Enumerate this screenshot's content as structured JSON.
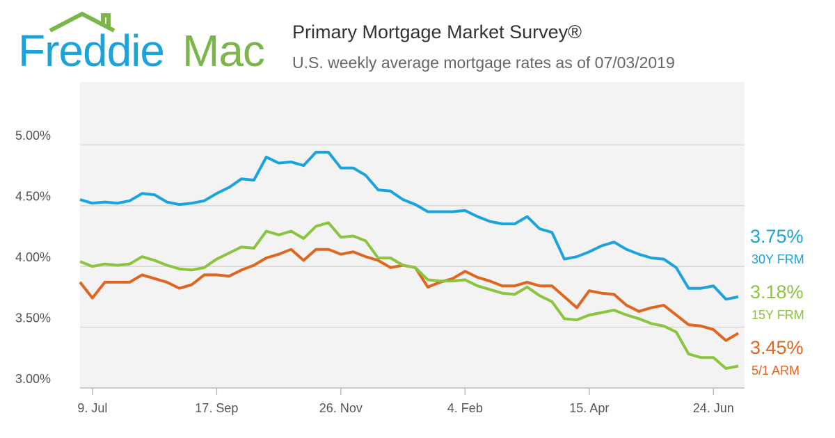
{
  "logo": {
    "left": "Freddie",
    "right": "Mac"
  },
  "chart_data": {
    "type": "line",
    "title": "Primary Mortgage Market Survey®",
    "subtitle": "U.S. weekly average mortgage rates as of 07/03/2019",
    "categories": [
      null,
      "9. Jul",
      null,
      null,
      null,
      null,
      null,
      null,
      null,
      null,
      null,
      "17. Sep",
      null,
      null,
      null,
      null,
      null,
      null,
      null,
      null,
      null,
      "26. Nov",
      null,
      null,
      null,
      null,
      null,
      null,
      null,
      null,
      null,
      "4. Feb",
      null,
      null,
      null,
      null,
      null,
      null,
      null,
      null,
      null,
      "15. Apr",
      null,
      null,
      null,
      null,
      null,
      null,
      null,
      null,
      null,
      "24. Jun",
      null,
      null
    ],
    "ylim": [
      3,
      5.5
    ],
    "yticks": [
      {
        "value": 3,
        "label": "3.00%"
      },
      {
        "value": 3.5,
        "label": "3.50%"
      },
      {
        "value": 4,
        "label": "4.00%"
      },
      {
        "value": 4.5,
        "label": "4.50%"
      },
      {
        "value": 5,
        "label": "5.00%"
      }
    ],
    "grid": true,
    "series": [
      {
        "name": "30Y FRM",
        "color": "#1ba3de",
        "values": [
          4.55,
          4.52,
          4.53,
          4.52,
          4.54,
          4.6,
          4.59,
          4.53,
          4.51,
          4.52,
          4.54,
          4.6,
          4.65,
          4.72,
          4.71,
          4.9,
          4.85,
          4.86,
          4.83,
          4.94,
          4.94,
          4.81,
          4.81,
          4.75,
          4.63,
          4.62,
          4.55,
          4.51,
          4.45,
          4.45,
          4.45,
          4.46,
          4.41,
          4.37,
          4.35,
          4.35,
          4.41,
          4.31,
          4.28,
          4.06,
          4.08,
          4.12,
          4.17,
          4.2,
          4.14,
          4.1,
          4.07,
          4.06,
          3.99,
          3.82,
          3.82,
          3.84,
          3.73,
          3.75
        ],
        "value_labels": [
          null,
          null,
          null,
          null,
          null,
          null,
          null,
          null,
          null,
          null,
          null,
          null,
          null,
          null,
          null,
          null,
          null,
          null,
          null,
          null,
          null,
          null,
          null,
          null,
          null,
          null,
          null,
          null,
          null,
          null,
          null,
          null,
          null,
          null,
          null,
          null,
          null,
          null,
          null,
          null,
          null,
          null,
          null,
          null,
          null,
          null,
          null,
          null,
          null,
          null,
          null,
          null,
          null,
          "3.75%"
        ]
      },
      {
        "name": "15Y FRM",
        "color": "#8bc43f",
        "values": [
          4.04,
          4.0,
          4.02,
          4.01,
          4.02,
          4.08,
          4.05,
          4.01,
          3.98,
          3.97,
          3.99,
          4.06,
          4.11,
          4.16,
          4.15,
          4.29,
          4.26,
          4.29,
          4.23,
          4.33,
          4.36,
          4.24,
          4.25,
          4.21,
          4.07,
          4.07,
          4.01,
          3.99,
          3.89,
          3.88,
          3.88,
          3.89,
          3.84,
          3.81,
          3.78,
          3.77,
          3.83,
          3.76,
          3.71,
          3.57,
          3.56,
          3.6,
          3.62,
          3.64,
          3.6,
          3.57,
          3.53,
          3.51,
          3.46,
          3.28,
          3.25,
          3.25,
          3.16,
          3.18
        ],
        "value_labels": [
          null,
          null,
          null,
          null,
          null,
          null,
          null,
          null,
          null,
          null,
          null,
          null,
          null,
          null,
          null,
          null,
          null,
          null,
          null,
          null,
          null,
          null,
          null,
          null,
          null,
          null,
          null,
          null,
          null,
          null,
          null,
          null,
          null,
          null,
          null,
          null,
          null,
          null,
          null,
          null,
          null,
          null,
          null,
          null,
          null,
          null,
          null,
          null,
          null,
          null,
          null,
          null,
          null,
          "3.18%"
        ]
      },
      {
        "name": "5/1 ARM",
        "color": "#e0651e",
        "values": [
          3.87,
          3.74,
          3.87,
          3.87,
          3.87,
          3.93,
          3.9,
          3.87,
          3.82,
          3.85,
          3.93,
          3.93,
          3.92,
          3.97,
          4.01,
          4.07,
          4.1,
          4.14,
          4.05,
          4.14,
          4.14,
          4.1,
          4.12,
          4.08,
          4.05,
          3.99,
          4.01,
          3.99,
          3.83,
          3.87,
          3.9,
          3.96,
          3.91,
          3.88,
          3.84,
          3.84,
          3.87,
          3.84,
          3.84,
          3.75,
          3.66,
          3.8,
          3.78,
          3.77,
          3.68,
          3.63,
          3.66,
          3.68,
          3.6,
          3.52,
          3.51,
          3.48,
          3.39,
          3.45
        ],
        "value_labels": [
          null,
          null,
          null,
          null,
          null,
          null,
          null,
          null,
          null,
          null,
          null,
          null,
          null,
          null,
          null,
          null,
          null,
          null,
          null,
          null,
          null,
          null,
          null,
          null,
          null,
          null,
          null,
          null,
          null,
          null,
          null,
          null,
          null,
          null,
          null,
          null,
          null,
          null,
          null,
          null,
          null,
          null,
          null,
          null,
          null,
          null,
          null,
          null,
          null,
          null,
          null,
          null,
          null,
          "3.45%"
        ]
      }
    ]
  }
}
